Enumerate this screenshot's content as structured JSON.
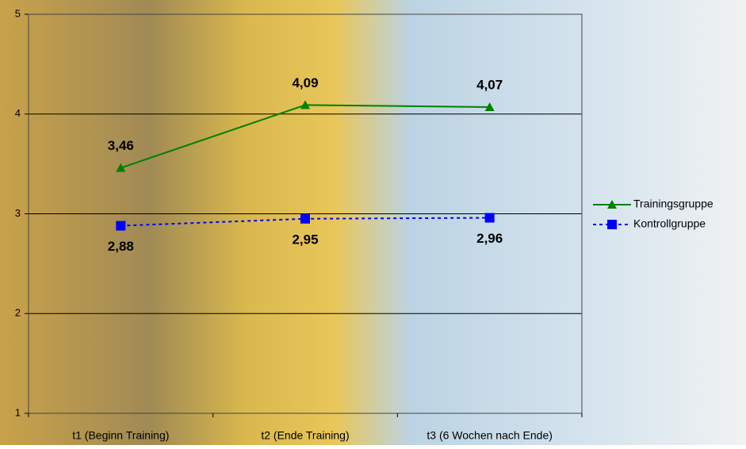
{
  "chart_data": {
    "type": "line",
    "categories": [
      "t1 (Beginn Training)",
      "t2 (Ende Training)",
      "t3 (6 Wochen nach Ende)"
    ],
    "series": [
      {
        "name": "Trainingsgruppe",
        "color": "#008000",
        "marker": "triangle",
        "dashed": false,
        "values": [
          3.46,
          4.09,
          4.07
        ],
        "value_labels": [
          "3,46",
          "4,09",
          "4,07"
        ]
      },
      {
        "name": "Kontrollgruppe",
        "color": "#0000ff",
        "marker": "square",
        "dashed": true,
        "values": [
          2.88,
          2.95,
          2.96
        ],
        "value_labels": [
          "2,88",
          "2,95",
          "2,96"
        ]
      }
    ],
    "ylim": [
      1,
      5
    ],
    "yticks": [
      1,
      2,
      3,
      4,
      5
    ],
    "grid": true,
    "legend": "right"
  }
}
